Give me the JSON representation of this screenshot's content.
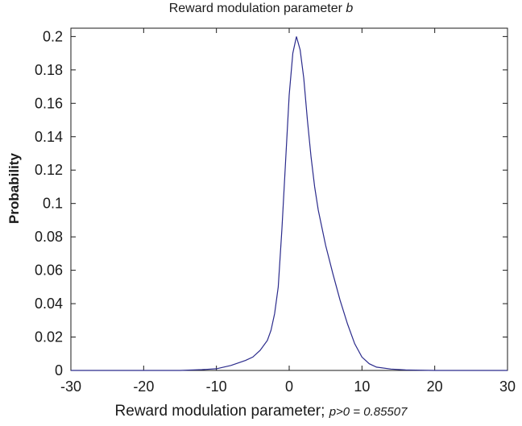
{
  "chart_data": {
    "type": "line",
    "title_prefix": "Reward modulation parameter ",
    "title_var": "b",
    "xlabel_prefix": "Reward modulation parameter; ",
    "xlabel_stat": "p>0 = 0.85507",
    "ylabel": "Probability",
    "xlim": [
      -30,
      30
    ],
    "ylim": [
      0,
      0.205
    ],
    "x_ticks": [
      -30,
      -20,
      -10,
      0,
      10,
      20,
      30
    ],
    "x_tick_labels": [
      "-30",
      "-20",
      "-10",
      "0",
      "10",
      "20",
      "30"
    ],
    "y_ticks": [
      0,
      0.02,
      0.04,
      0.06,
      0.08,
      0.1,
      0.12,
      0.14,
      0.16,
      0.18,
      0.2
    ],
    "y_tick_labels": [
      "0",
      "0.02",
      "0.04",
      "0.06",
      "0.08",
      "0.1",
      "0.12",
      "0.14",
      "0.16",
      "0.18",
      "0.2"
    ],
    "line_color": "#2b2b8c",
    "grid": false,
    "series": [
      {
        "x": [
          -30,
          -15,
          -12,
          -10,
          -8,
          -6,
          -5,
          -4,
          -3,
          -2.5,
          -2,
          -1.5,
          -1,
          -0.5,
          0,
          0.5,
          1,
          1.5,
          2,
          2.5,
          3,
          3.5,
          4,
          5,
          6,
          7,
          8,
          9,
          10,
          11,
          12,
          14,
          16,
          20,
          30
        ],
        "y": [
          0,
          0,
          0.0005,
          0.001,
          0.003,
          0.006,
          0.008,
          0.012,
          0.018,
          0.024,
          0.034,
          0.05,
          0.085,
          0.125,
          0.165,
          0.19,
          0.2,
          0.192,
          0.175,
          0.15,
          0.128,
          0.11,
          0.096,
          0.075,
          0.058,
          0.042,
          0.028,
          0.016,
          0.008,
          0.004,
          0.002,
          0.0008,
          0.0003,
          0,
          0
        ]
      }
    ]
  }
}
